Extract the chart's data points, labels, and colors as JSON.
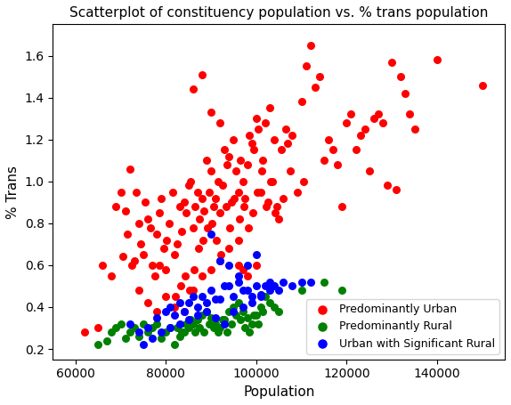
{
  "title": "Scatterplot of constituency population vs. % trans population",
  "xlabel": "Population",
  "ylabel": "% Trans",
  "xlim": [
    55000,
    155000
  ],
  "ylim": [
    0.15,
    1.75
  ],
  "legend_labels": [
    "Predominantly Urban",
    "Predominantly Rural",
    "Urban with Significant Rural"
  ],
  "legend_colors": [
    "red",
    "green",
    "blue"
  ],
  "red_points": [
    [
      62000,
      0.28
    ],
    [
      65000,
      0.3
    ],
    [
      66000,
      0.6
    ],
    [
      68000,
      0.55
    ],
    [
      69000,
      0.88
    ],
    [
      70000,
      0.95
    ],
    [
      70500,
      0.64
    ],
    [
      71000,
      0.86
    ],
    [
      71500,
      0.75
    ],
    [
      72000,
      1.06
    ],
    [
      72500,
      0.6
    ],
    [
      73000,
      0.62
    ],
    [
      73500,
      0.95
    ],
    [
      74000,
      0.8
    ],
    [
      74500,
      0.7
    ],
    [
      75000,
      0.65
    ],
    [
      75500,
      0.9
    ],
    [
      76000,
      0.82
    ],
    [
      76500,
      0.78
    ],
    [
      77000,
      0.6
    ],
    [
      77500,
      0.55
    ],
    [
      78000,
      0.75
    ],
    [
      78500,
      0.85
    ],
    [
      79000,
      0.92
    ],
    [
      79500,
      0.68
    ],
    [
      80000,
      0.58
    ],
    [
      80200,
      0.72
    ],
    [
      80800,
      0.8
    ],
    [
      81500,
      0.95
    ],
    [
      82000,
      0.65
    ],
    [
      82200,
      0.45
    ],
    [
      82500,
      0.7
    ],
    [
      83000,
      0.88
    ],
    [
      83300,
      0.5
    ],
    [
      83500,
      0.76
    ],
    [
      84000,
      0.9
    ],
    [
      84200,
      0.55
    ],
    [
      84500,
      0.85
    ],
    [
      85000,
      0.98
    ],
    [
      85200,
      0.48
    ],
    [
      85500,
      1.0
    ],
    [
      86000,
      0.78
    ],
    [
      86300,
      0.58
    ],
    [
      86500,
      0.88
    ],
    [
      87000,
      0.95
    ],
    [
      87200,
      0.68
    ],
    [
      87500,
      0.82
    ],
    [
      88000,
      0.92
    ],
    [
      88300,
      0.72
    ],
    [
      88500,
      0.86
    ],
    [
      89000,
      1.1
    ],
    [
      89200,
      0.78
    ],
    [
      89500,
      0.95
    ],
    [
      90000,
      1.05
    ],
    [
      90200,
      0.8
    ],
    [
      90500,
      0.88
    ],
    [
      91000,
      0.92
    ],
    [
      91200,
      0.72
    ],
    [
      91500,
      1.0
    ],
    [
      92000,
      0.85
    ],
    [
      92200,
      0.65
    ],
    [
      92500,
      0.98
    ],
    [
      93000,
      1.15
    ],
    [
      93300,
      0.88
    ],
    [
      93500,
      1.08
    ],
    [
      94000,
      1.12
    ],
    [
      94200,
      0.78
    ],
    [
      94500,
      0.9
    ],
    [
      95000,
      1.2
    ],
    [
      95200,
      0.92
    ],
    [
      95500,
      1.05
    ],
    [
      96000,
      0.95
    ],
    [
      96200,
      0.82
    ],
    [
      96500,
      1.1
    ],
    [
      97000,
      1.0
    ],
    [
      97200,
      0.88
    ],
    [
      97500,
      0.92
    ],
    [
      98000,
      1.08
    ],
    [
      98300,
      0.78
    ],
    [
      98500,
      1.22
    ],
    [
      99000,
      1.18
    ],
    [
      99200,
      0.85
    ],
    [
      99500,
      1.15
    ],
    [
      100000,
      1.3
    ],
    [
      100200,
      0.95
    ],
    [
      100500,
      1.25
    ],
    [
      101000,
      0.95
    ],
    [
      101200,
      1.05
    ],
    [
      101500,
      1.1
    ],
    [
      102000,
      1.28
    ],
    [
      102200,
      0.88
    ],
    [
      102500,
      0.9
    ],
    [
      103000,
      1.35
    ],
    [
      103200,
      1.0
    ],
    [
      103500,
      1.0
    ],
    [
      104000,
      1.2
    ],
    [
      104200,
      0.85
    ],
    [
      104500,
      0.88
    ],
    [
      105000,
      0.82
    ],
    [
      105500,
      1.15
    ],
    [
      106000,
      0.92
    ],
    [
      106500,
      1.25
    ],
    [
      107000,
      1.18
    ],
    [
      107500,
      1.05
    ],
    [
      108000,
      1.22
    ],
    [
      109000,
      0.95
    ],
    [
      110000,
      1.38
    ],
    [
      110500,
      1.0
    ],
    [
      111000,
      1.55
    ],
    [
      112000,
      1.65
    ],
    [
      113000,
      1.45
    ],
    [
      114000,
      1.5
    ],
    [
      115000,
      1.1
    ],
    [
      116000,
      1.2
    ],
    [
      117000,
      1.15
    ],
    [
      118000,
      1.08
    ],
    [
      119000,
      0.88
    ],
    [
      120000,
      1.28
    ],
    [
      121000,
      1.32
    ],
    [
      122000,
      1.15
    ],
    [
      123000,
      1.22
    ],
    [
      124000,
      1.25
    ],
    [
      125000,
      1.05
    ],
    [
      126000,
      1.3
    ],
    [
      127000,
      1.32
    ],
    [
      128000,
      1.28
    ],
    [
      129000,
      0.98
    ],
    [
      130000,
      1.57
    ],
    [
      131000,
      0.96
    ],
    [
      132000,
      1.5
    ],
    [
      133000,
      1.42
    ],
    [
      134000,
      1.32
    ],
    [
      135000,
      1.25
    ],
    [
      140000,
      1.58
    ],
    [
      150000,
      1.46
    ],
    [
      74000,
      0.48
    ],
    [
      76000,
      0.42
    ],
    [
      78000,
      0.38
    ],
    [
      80000,
      0.45
    ],
    [
      82000,
      0.4
    ],
    [
      84000,
      0.38
    ],
    [
      86000,
      0.48
    ],
    [
      88000,
      0.55
    ],
    [
      90000,
      0.58
    ],
    [
      92000,
      0.62
    ],
    [
      94000,
      0.68
    ],
    [
      96000,
      0.72
    ],
    [
      98000,
      0.55
    ],
    [
      100000,
      0.6
    ],
    [
      86000,
      1.44
    ],
    [
      88000,
      1.51
    ],
    [
      90000,
      1.33
    ],
    [
      92000,
      1.28
    ],
    [
      96000,
      0.6
    ],
    [
      97000,
      0.58
    ],
    [
      78500,
      0.6
    ]
  ],
  "green_points": [
    [
      65000,
      0.22
    ],
    [
      67000,
      0.24
    ],
    [
      68000,
      0.28
    ],
    [
      69000,
      0.3
    ],
    [
      70000,
      0.32
    ],
    [
      71000,
      0.25
    ],
    [
      72000,
      0.28
    ],
    [
      73000,
      0.3
    ],
    [
      74000,
      0.26
    ],
    [
      75000,
      0.32
    ],
    [
      76000,
      0.28
    ],
    [
      77000,
      0.3
    ],
    [
      78000,
      0.32
    ],
    [
      79000,
      0.25
    ],
    [
      80000,
      0.28
    ],
    [
      81000,
      0.3
    ],
    [
      82000,
      0.22
    ],
    [
      82500,
      0.3
    ],
    [
      83000,
      0.26
    ],
    [
      83500,
      0.28
    ],
    [
      84000,
      0.28
    ],
    [
      84500,
      0.32
    ],
    [
      85000,
      0.3
    ],
    [
      85500,
      0.34
    ],
    [
      86000,
      0.32
    ],
    [
      86500,
      0.28
    ],
    [
      87000,
      0.34
    ],
    [
      87500,
      0.3
    ],
    [
      88000,
      0.36
    ],
    [
      88500,
      0.28
    ],
    [
      89000,
      0.38
    ],
    [
      89500,
      0.32
    ],
    [
      90000,
      0.35
    ],
    [
      90500,
      0.3
    ],
    [
      91000,
      0.32
    ],
    [
      91500,
      0.28
    ],
    [
      92000,
      0.3
    ],
    [
      92500,
      0.34
    ],
    [
      93000,
      0.34
    ],
    [
      93500,
      0.28
    ],
    [
      94000,
      0.38
    ],
    [
      94500,
      0.32
    ],
    [
      95000,
      0.4
    ],
    [
      95500,
      0.36
    ],
    [
      96000,
      0.42
    ],
    [
      96500,
      0.34
    ],
    [
      97000,
      0.38
    ],
    [
      97500,
      0.3
    ],
    [
      98000,
      0.35
    ],
    [
      98500,
      0.28
    ],
    [
      99000,
      0.32
    ],
    [
      99500,
      0.36
    ],
    [
      100000,
      0.36
    ],
    [
      100500,
      0.32
    ],
    [
      101000,
      0.4
    ],
    [
      101500,
      0.38
    ],
    [
      102000,
      0.45
    ],
    [
      103000,
      0.42
    ],
    [
      104000,
      0.4
    ],
    [
      105000,
      0.38
    ],
    [
      110000,
      0.48
    ],
    [
      115000,
      0.52
    ],
    [
      119000,
      0.48
    ]
  ],
  "blue_points": [
    [
      72000,
      0.32
    ],
    [
      74000,
      0.28
    ],
    [
      76000,
      0.3
    ],
    [
      78000,
      0.35
    ],
    [
      80000,
      0.38
    ],
    [
      81000,
      0.4
    ],
    [
      82000,
      0.36
    ],
    [
      83000,
      0.42
    ],
    [
      84000,
      0.38
    ],
    [
      85000,
      0.42
    ],
    [
      86000,
      0.45
    ],
    [
      87000,
      0.4
    ],
    [
      88000,
      0.45
    ],
    [
      89000,
      0.42
    ],
    [
      90000,
      0.48
    ],
    [
      91000,
      0.44
    ],
    [
      92000,
      0.44
    ],
    [
      93000,
      0.5
    ],
    [
      94000,
      0.5
    ],
    [
      95000,
      0.45
    ],
    [
      96000,
      0.52
    ],
    [
      97000,
      0.48
    ],
    [
      98000,
      0.48
    ],
    [
      99000,
      0.45
    ],
    [
      100000,
      0.5
    ],
    [
      101000,
      0.46
    ],
    [
      102000,
      0.5
    ],
    [
      103000,
      0.48
    ],
    [
      104000,
      0.5
    ],
    [
      105000,
      0.48
    ],
    [
      106000,
      0.52
    ],
    [
      108000,
      0.5
    ],
    [
      110000,
      0.52
    ],
    [
      75000,
      0.22
    ],
    [
      77000,
      0.25
    ],
    [
      79000,
      0.28
    ],
    [
      81000,
      0.3
    ],
    [
      83000,
      0.32
    ],
    [
      85000,
      0.34
    ],
    [
      87000,
      0.36
    ],
    [
      89000,
      0.38
    ],
    [
      91000,
      0.35
    ],
    [
      93000,
      0.32
    ],
    [
      95000,
      0.38
    ],
    [
      97000,
      0.4
    ],
    [
      99000,
      0.42
    ],
    [
      101000,
      0.45
    ],
    [
      90000,
      0.75
    ],
    [
      92000,
      0.62
    ],
    [
      94000,
      0.6
    ],
    [
      96000,
      0.55
    ],
    [
      98000,
      0.6
    ],
    [
      100000,
      0.65
    ],
    [
      103000,
      0.52
    ],
    [
      112000,
      0.52
    ]
  ]
}
